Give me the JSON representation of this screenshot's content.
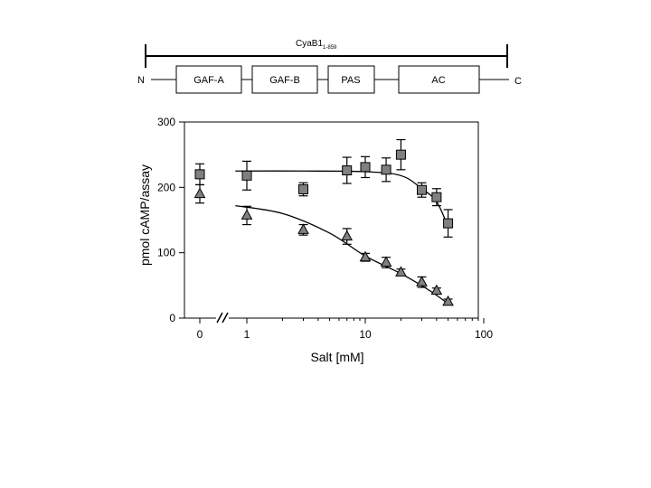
{
  "domain_diagram": {
    "title_main": "CyaB1",
    "title_sub": "1-859",
    "n_label": "N",
    "c_label": "C",
    "domains": [
      "GAF-A",
      "GAF-B",
      "PAS",
      "AC"
    ]
  },
  "chart_data": {
    "type": "scatter",
    "xlabel": "Salt [mM]",
    "ylabel": "pmol cAMP/assay",
    "x_scale": "log-with-break",
    "x_ticks": [
      "0",
      "1",
      "10",
      "100"
    ],
    "y_ticks": [
      "0",
      "100",
      "200",
      "300"
    ],
    "ylim": [
      0,
      300
    ],
    "grid": false,
    "series": [
      {
        "marker": "square",
        "color": "#808080",
        "x": [
          0,
          1,
          3,
          7,
          10,
          15,
          20,
          30,
          40,
          50
        ],
        "y": [
          220,
          218,
          197,
          226,
          231,
          227,
          250,
          196,
          185,
          145
        ],
        "err": [
          16,
          22,
          10,
          20,
          16,
          18,
          23,
          11,
          13,
          21
        ]
      },
      {
        "marker": "triangle",
        "color": "#808080",
        "x": [
          0,
          1,
          3,
          7,
          10,
          15,
          20,
          30,
          40,
          50
        ],
        "y": [
          190,
          157,
          135,
          125,
          93,
          85,
          70,
          55,
          42,
          25
        ],
        "err": [
          14,
          14,
          8,
          12,
          6,
          8,
          5,
          8,
          4,
          4
        ]
      }
    ],
    "fits": [
      {
        "of_series": 0,
        "x": [
          0.8,
          3,
          10,
          20,
          30,
          40,
          50
        ],
        "y": [
          225,
          225,
          224,
          218,
          198,
          178,
          140
        ]
      },
      {
        "of_series": 1,
        "x": [
          0.8,
          2,
          5,
          10,
          20,
          35,
          50
        ],
        "y": [
          172,
          160,
          130,
          95,
          68,
          42,
          22
        ]
      }
    ]
  }
}
